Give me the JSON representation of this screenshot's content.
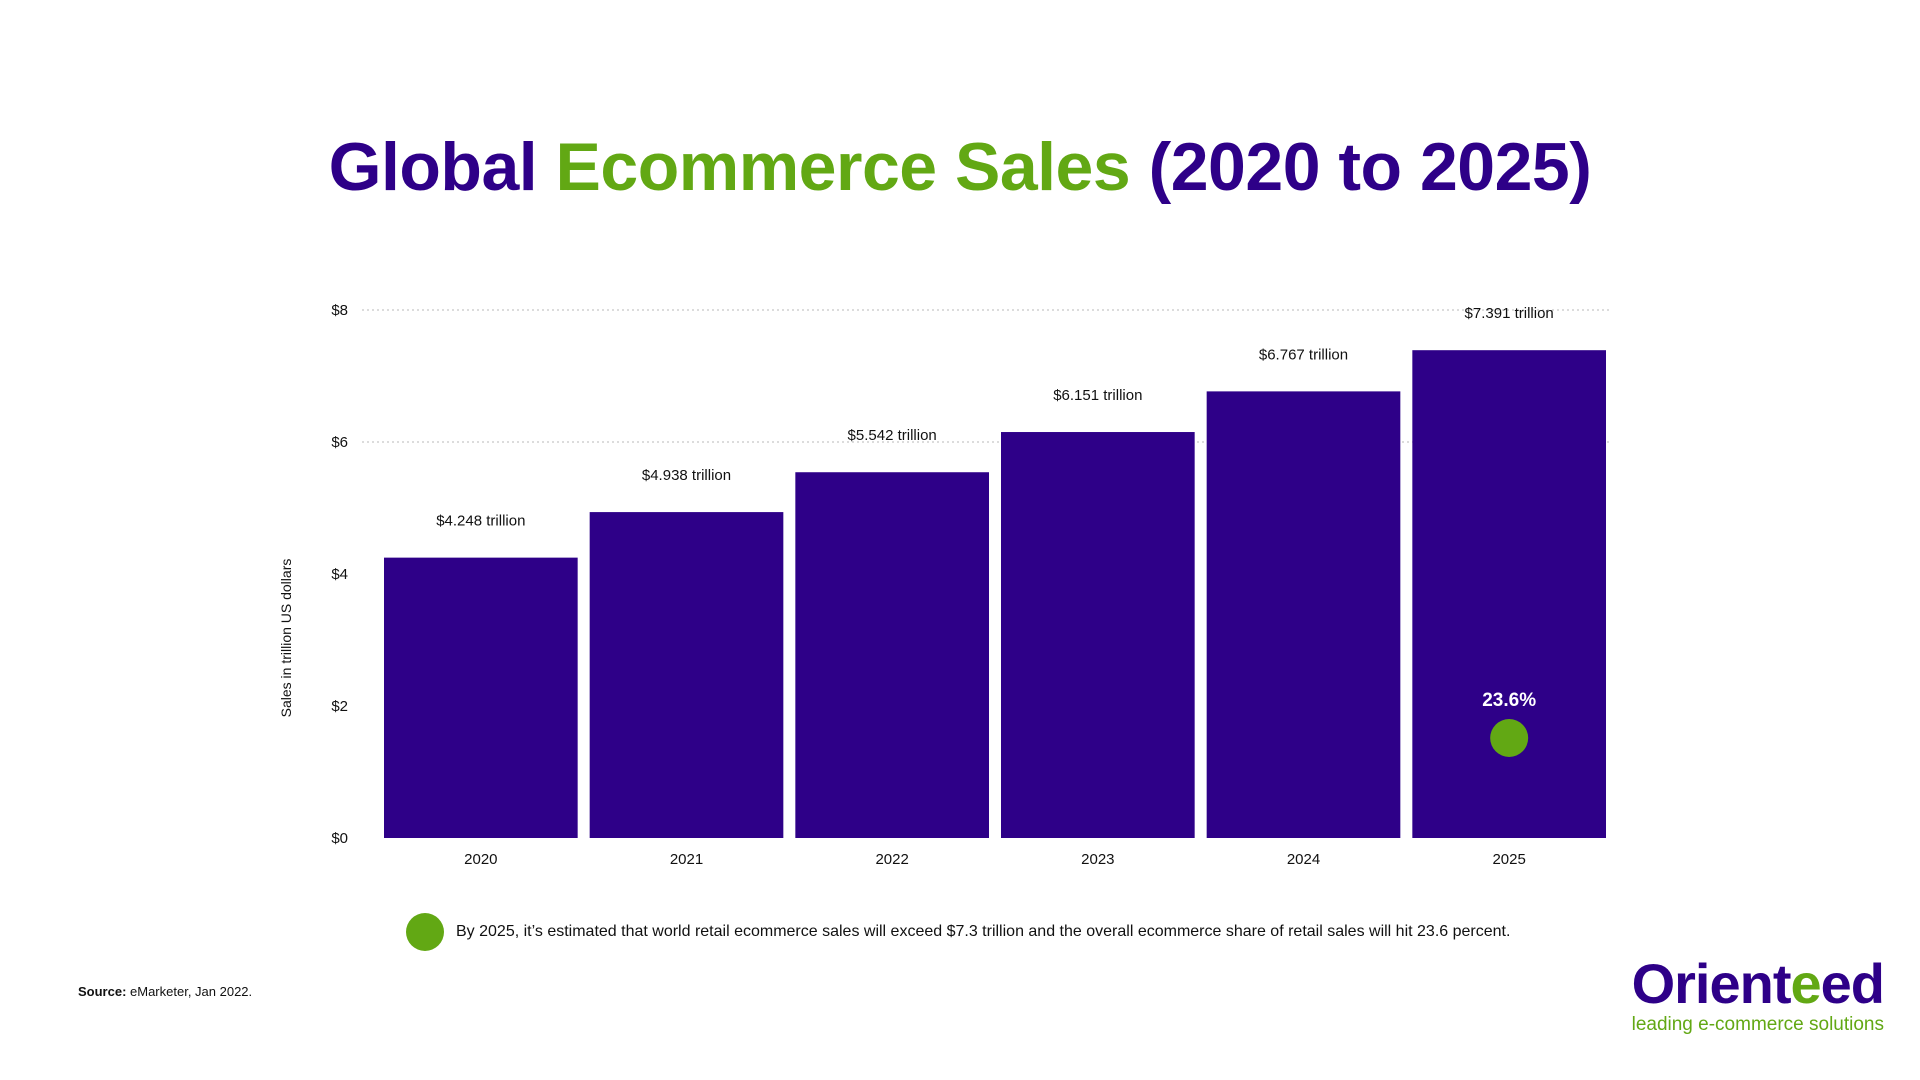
{
  "title": {
    "part1": "Global ",
    "part2": "Ecommerce Sales",
    "part3": " (2020 to 2025)"
  },
  "chart_data": {
    "type": "bar",
    "categories": [
      "2020",
      "2021",
      "2022",
      "2023",
      "2024",
      "2025"
    ],
    "values": [
      4.248,
      4.938,
      5.542,
      6.151,
      6.767,
      7.391
    ],
    "data_labels": [
      "$4.248 trillion",
      "$4.938 trillion",
      "$5.542 trillion",
      "$6.151 trillion",
      "$6.767 trillion",
      "$7.391 trillion"
    ],
    "ylabel": "Sales in trillion US dollars",
    "ylim": [
      0,
      8
    ],
    "yticks": [
      0,
      2,
      4,
      6,
      8
    ],
    "ytick_labels": [
      "$0",
      "$2",
      "$4",
      "$6",
      "$8"
    ],
    "grid": "dotted at $6 and $8",
    "bar_color": "#2e0088",
    "annotation": {
      "category": "2025",
      "label": "23.6%",
      "marker_color": "#62a814"
    }
  },
  "footnote": "By 2025, it’s estimated that world retail ecommerce sales will exceed $7.3 trillion and the overall ecommerce share of retail sales will hit 23.6 percent.",
  "source": {
    "label": "Source:",
    "text": " eMarketer, Jan 2022."
  },
  "logo": {
    "name_part1": "Orient",
    "name_part2": "e",
    "name_part3": "ed",
    "tagline": "leading e-commerce solutions"
  },
  "colors": {
    "primary": "#2e0088",
    "accent": "#62a814"
  }
}
